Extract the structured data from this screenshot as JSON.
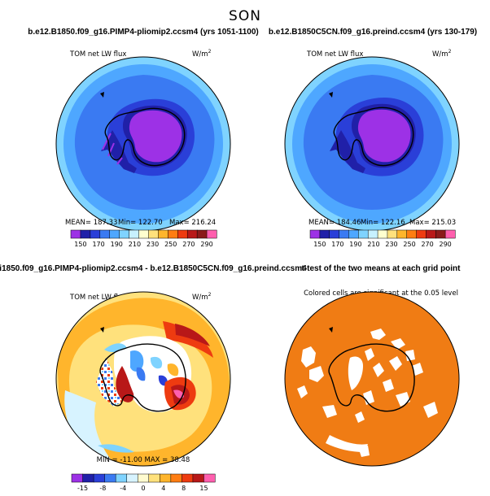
{
  "figure": {
    "season": "SON"
  },
  "chart_data": [
    {
      "type": "heatmap",
      "title": "b.e12.B1850.f09_g16.PIMP4-pliomip2.ccsm4 (yrs 1051-1100)",
      "variable": "TOM net LW flux",
      "units": "W/m",
      "units_exp": "2",
      "stats": {
        "mean": "MEAN= 187.33",
        "min": "Min= 122.70",
        "max": "Max= 216.24"
      },
      "colorbar": {
        "ticks": [
          "150",
          "170",
          "190",
          "210",
          "230",
          "250",
          "270",
          "290"
        ],
        "colors": [
          "#9d31e6",
          "#2020a8",
          "#2a3fd8",
          "#3a7af2",
          "#4ea7ff",
          "#7fd3ff",
          "#c7f1ff",
          "#ffffcf",
          "#ffe17c",
          "#ffb52c",
          "#ff7d12",
          "#ee3b10",
          "#b81818",
          "#8a1a1a",
          "#ff5fae"
        ]
      }
    },
    {
      "type": "heatmap",
      "title": "b.e12.B1850C5CN.f09_g16.preind.ccsm4 (yrs 130-179)",
      "variable": "TOM net LW flux",
      "units": "W/m",
      "units_exp": "2",
      "stats": {
        "mean": "MEAN= 184.46",
        "min": "Min= 122.16",
        "max": "Max= 215.03"
      },
      "colorbar": {
        "ticks": [
          "150",
          "170",
          "190",
          "210",
          "230",
          "250",
          "270",
          "290"
        ],
        "colors": [
          "#9d31e6",
          "#2020a8",
          "#2a3fd8",
          "#3a7af2",
          "#4ea7ff",
          "#7fd3ff",
          "#c7f1ff",
          "#ffffcf",
          "#ffe17c",
          "#ffb52c",
          "#ff7d12",
          "#ee3b10",
          "#b81818",
          "#8a1a1a",
          "#ff5fae"
        ]
      }
    },
    {
      "type": "heatmap",
      "title": "i1850.f09_g16.PIMP4-pliomip2.ccsm4 - b.e12.B1850C5CN.f09_g16.preind.ccsm4",
      "variable": "TOM net LW flux",
      "units": "W/m",
      "units_exp": "2",
      "stats": {
        "range": "MIN = -11.00  MAX = 38.48"
      },
      "colorbar": {
        "ticks": [
          "-15",
          "-8",
          "-4",
          "0",
          "4",
          "8",
          "15"
        ],
        "colors": [
          "#9d31e6",
          "#2020a8",
          "#2a3fd8",
          "#3a7af2",
          "#7fd3ff",
          "#d7f3ff",
          "#fffbd0",
          "#ffe17c",
          "#ffb52c",
          "#ff7d12",
          "#ee3b10",
          "#b81818",
          "#ff5fae"
        ]
      }
    },
    {
      "type": "heatmap",
      "title": "t-test of the two means at each grid point",
      "subtitle": "Colored cells are significant at the 0.05 level",
      "significant_color": "#f07c14"
    }
  ]
}
